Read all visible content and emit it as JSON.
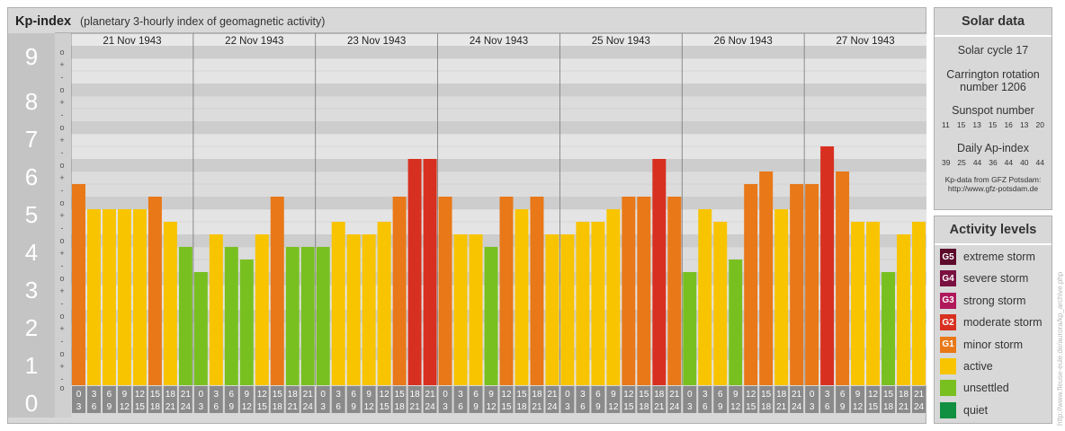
{
  "header": {
    "title": "Kp-index",
    "subtitle": "(planetary 3-hourly index of geomagnetic activity)"
  },
  "chart_data": {
    "type": "bar",
    "ylim": [
      0,
      9
    ],
    "y_ticks": [
      "0",
      "1",
      "2",
      "3",
      "4",
      "5",
      "6",
      "7",
      "8",
      "9"
    ],
    "minor_ticks": [
      "o",
      "+",
      "-"
    ],
    "days": [
      "21 Nov 1943",
      "22 Nov 1943",
      "23 Nov 1943",
      "24 Nov 1943",
      "25 Nov 1943",
      "26 Nov 1943",
      "27 Nov 1943"
    ],
    "interval_labels": [
      [
        "0",
        "3"
      ],
      [
        "3",
        "6"
      ],
      [
        "6",
        "9"
      ],
      [
        "9",
        "12"
      ],
      [
        "12",
        "15"
      ],
      [
        "15",
        "18"
      ],
      [
        "18",
        "21"
      ],
      [
        "21",
        "24"
      ]
    ],
    "values": [
      [
        5.333,
        4.667,
        4.667,
        4.667,
        4.667,
        5.0,
        4.333,
        3.667
      ],
      [
        3.0,
        4.0,
        3.667,
        3.333,
        4.0,
        5.0,
        3.667,
        3.667
      ],
      [
        3.667,
        4.333,
        4.0,
        4.0,
        4.333,
        5.0,
        6.0,
        6.0
      ],
      [
        5.0,
        4.0,
        4.0,
        3.667,
        5.0,
        4.667,
        5.0,
        4.0
      ],
      [
        4.0,
        4.333,
        4.333,
        4.667,
        5.0,
        5.0,
        6.0,
        5.0
      ],
      [
        3.0,
        4.667,
        4.333,
        3.333,
        5.333,
        5.667,
        4.667,
        5.333
      ],
      [
        5.333,
        6.333,
        5.667,
        4.333,
        4.333,
        3.0,
        4.0,
        4.333
      ]
    ]
  },
  "solar": {
    "title": "Solar data",
    "cycle": "Solar cycle 17",
    "rotation_line1": "Carrington rotation",
    "rotation_line2": "number 1206",
    "sunspot_label": "Sunspot number",
    "sunspot_values": [
      "11",
      "15",
      "13",
      "15",
      "16",
      "13",
      "20"
    ],
    "ap_label": "Daily Ap-index",
    "ap_values": [
      "39",
      "25",
      "44",
      "36",
      "44",
      "40",
      "44"
    ],
    "source_line1": "Kp-data from GFZ Potsdam:",
    "source_line2": "http://www.gfz-potsdam.de"
  },
  "activity": {
    "title": "Activity levels",
    "levels": [
      {
        "code": "G5",
        "label": "extreme storm",
        "color": "#5c0a2a"
      },
      {
        "code": "G4",
        "label": "severe storm",
        "color": "#7a1040"
      },
      {
        "code": "G3",
        "label": "strong storm",
        "color": "#b0185c"
      },
      {
        "code": "G2",
        "label": "moderate storm",
        "color": "#d83020"
      },
      {
        "code": "G1",
        "label": "minor storm",
        "color": "#e87818"
      },
      {
        "code": "",
        "label": "active",
        "color": "#f8c400"
      },
      {
        "code": "",
        "label": "unsettled",
        "color": "#78c020"
      },
      {
        "code": "",
        "label": "quiet",
        "color": "#109040"
      }
    ]
  },
  "credit": "http://www.fleuse-eule.de/aurora/kp_archive.php"
}
